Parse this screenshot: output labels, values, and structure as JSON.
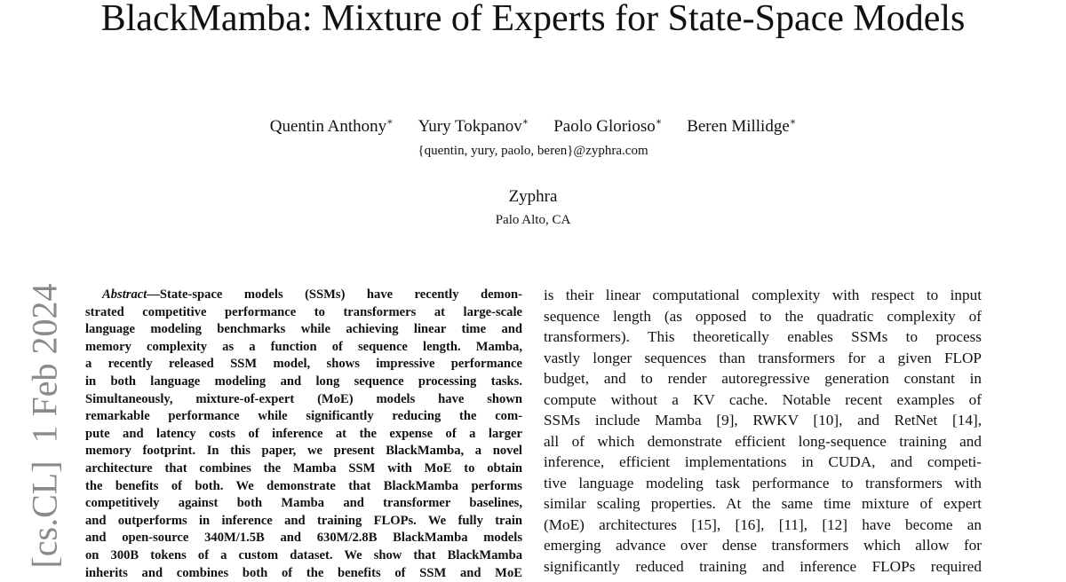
{
  "header": {
    "title": "BlackMamba: Mixture of Experts for State-Space Models",
    "authors": [
      {
        "name": "Quentin Anthony",
        "mark": "∗"
      },
      {
        "name": "Yury Tokpanov",
        "mark": "∗"
      },
      {
        "name": "Paolo Glorioso",
        "mark": "∗"
      },
      {
        "name": "Beren Millidge",
        "mark": "∗"
      }
    ],
    "email": "{quentin, yury, paolo, beren}@zyphra.com",
    "affiliation": "Zyphra",
    "location": "Palo Alto, CA"
  },
  "sidebar": "[cs.CL]  1 Feb 2024",
  "abstract": {
    "label": "Abstract",
    "lines": [
      "—State-space models (SSMs) have recently demon-",
      "strated competitive performance to transformers at large-scale",
      "language modeling benchmarks while achieving linear time and",
      "memory complexity as a function of sequence length. Mamba,",
      "a recently released SSM model, shows impressive performance",
      "in both language modeling and long sequence processing tasks.",
      "Simultaneously, mixture-of-expert (MoE) models have shown",
      "remarkable performance while significantly reducing the com-",
      "pute and latency costs of inference at the expense of a larger",
      "memory footprint. In this paper, we present BlackMamba, a novel",
      "architecture that combines the Mamba SSM with MoE to obtain",
      "the benefits of both. We demonstrate that BlackMamba performs",
      "competitively against both Mamba and transformer baselines,",
      "and outperforms in inference and training FLOPs. We fully train",
      "and open-source 340M/1.5B and 630M/2.8B BlackMamba models",
      "on 300B tokens of a custom dataset. We show that BlackMamba",
      "inherits and combines both of the benefits of SSM and MoE"
    ]
  },
  "body": {
    "lines": [
      "is their linear computational complexity with respect to input",
      "sequence length (as opposed to the quadratic complexity of",
      "transformers). This theoretically enables SSMs to process",
      "vastly longer sequences than transformers for a given FLOP",
      "budget, and to render autoregressive generation constant in",
      "compute without a KV cache. Notable recent examples of",
      "SSMs include Mamba [9], RWKV [10], and RetNet [14],",
      "all of which demonstrate efficient long-sequence training and",
      "inference, efficient implementations in CUDA, and competi-",
      "tive language modeling task performance to transformers with",
      "similar scaling properties. At the same time mixture of expert",
      "(MoE) architectures [15], [16], [11], [12] have become an",
      "emerging advance over dense transformers which allow for",
      "significantly reduced training and inference FLOPs required"
    ]
  }
}
